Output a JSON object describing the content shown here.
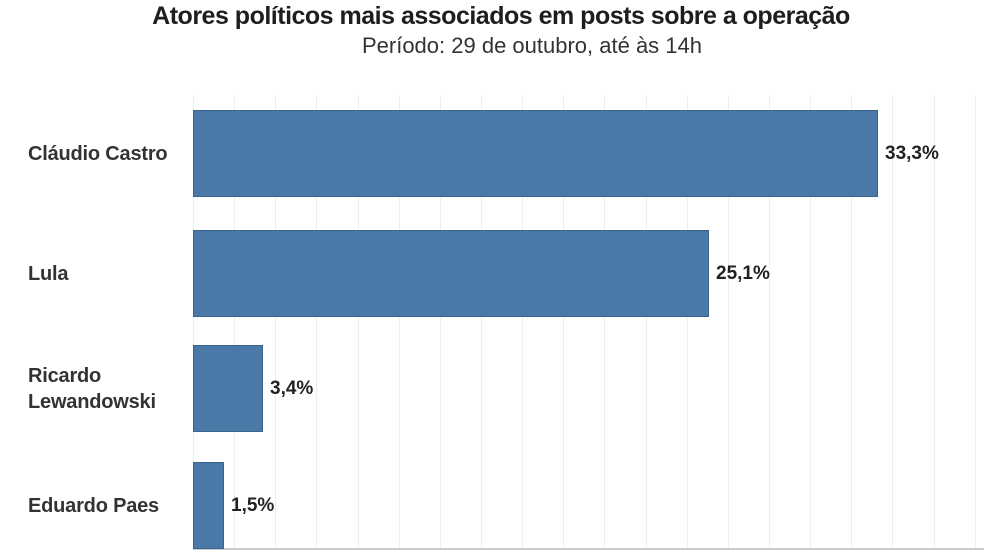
{
  "chart_data": {
    "type": "bar",
    "orientation": "horizontal",
    "title": "Atores políticos mais associados em posts sobre a operação",
    "subtitle": "Período: 29 de outubro, até às 14h",
    "categories": [
      "Cláudio Castro",
      "Lula",
      "Ricardo Lewandowski",
      "Eduardo Paes"
    ],
    "values": [
      33.3,
      25.1,
      3.4,
      1.5
    ],
    "value_labels": [
      "33,3%",
      "25,1%",
      "3,4%",
      "1,5%"
    ],
    "unit": "%",
    "xlim": [
      0,
      38.5
    ],
    "gridline_step": 2,
    "grid": "vertical",
    "legend": "none",
    "colors": {
      "bar": "#4b79a7",
      "gridline": "#f0eded",
      "axis_line": "#cccccc",
      "title_text": "#1e1e1e",
      "subtitle_text": "#333333",
      "category_text": "#333333",
      "value_text": "#222222",
      "background": "#ffffff"
    }
  }
}
